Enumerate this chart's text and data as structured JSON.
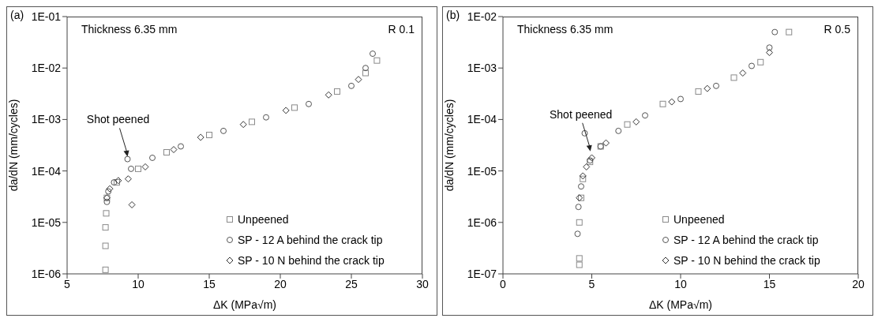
{
  "chart_data": [
    {
      "type": "scatter",
      "title": "(a)",
      "xlabel": "ΔK (MPa√m)",
      "ylabel": "da/dN (mm/cycles)",
      "log": "y",
      "grid": false,
      "legend": "bottom right",
      "xlim": [
        5,
        30
      ],
      "xticks": [
        5,
        10,
        15,
        20,
        25,
        30
      ],
      "ylim": [
        1e-06,
        0.1
      ],
      "yticks": [
        {
          "value": 1e-06,
          "label": "1E-06"
        },
        {
          "value": 1e-05,
          "label": "1E-05"
        },
        {
          "value": 0.0001,
          "label": "1E-04"
        },
        {
          "value": 0.001,
          "label": "1E-03"
        },
        {
          "value": 0.01,
          "label": "1E-02"
        },
        {
          "value": 0.1,
          "label": "1E-01"
        }
      ],
      "annotations": [
        "Thickness 6.35 mm",
        "R 0.1",
        {
          "text": "Shot peened",
          "x": 9.25,
          "y": 0.00019
        }
      ],
      "series": [
        {
          "name": "Unpeened",
          "color": "#8a8a8a",
          "marker": "square",
          "x": [
            7.7,
            7.7,
            7.7,
            7.75,
            7.8,
            8.5,
            10,
            12,
            15,
            18,
            21,
            24,
            26,
            26.8
          ],
          "values": [
            1.2e-06,
            3.5e-06,
            8e-06,
            1.5e-05,
            3e-05,
            6e-05,
            0.00011,
            0.00023,
            0.0005,
            0.0009,
            0.0017,
            0.0035,
            0.008,
            0.014
          ]
        },
        {
          "name": "SP - 12 A behind the crack tip",
          "color": "#555555",
          "marker": "circle",
          "x": [
            7.8,
            7.9,
            8.3,
            9.25,
            9.5,
            11,
            13,
            16,
            19,
            22,
            25,
            26,
            26.5
          ],
          "values": [
            2.5e-05,
            4e-05,
            6e-05,
            0.00017,
            0.00011,
            0.00018,
            0.0003,
            0.0006,
            0.0011,
            0.002,
            0.0045,
            0.01,
            0.019
          ]
        },
        {
          "name": "SP - 10 N behind the crack tip",
          "color": "#333333",
          "marker": "diamond",
          "x": [
            7.8,
            8,
            8.6,
            9.3,
            9.56,
            10.5,
            12.5,
            14.4,
            17.4,
            20.4,
            23.4,
            25.5
          ],
          "values": [
            3e-05,
            4.5e-05,
            6.5e-05,
            7e-05,
            2.2e-05,
            0.00012,
            0.00026,
            0.00045,
            0.0008,
            0.0015,
            0.003,
            0.006
          ]
        }
      ]
    },
    {
      "type": "scatter",
      "title": "(b)",
      "xlabel": "ΔK (MPa√m)",
      "ylabel": "da/dN (mm/cycles)",
      "log": "y",
      "grid": false,
      "legend": "bottom right",
      "xlim": [
        0,
        20
      ],
      "xticks": [
        0,
        5,
        10,
        15,
        20
      ],
      "ylim": [
        1e-07,
        0.01
      ],
      "yticks": [
        {
          "value": 1e-07,
          "label": "1E-07"
        },
        {
          "value": 1e-06,
          "label": "1E-06"
        },
        {
          "value": 1e-05,
          "label": "1E-05"
        },
        {
          "value": 0.0001,
          "label": "1E-04"
        },
        {
          "value": 0.001,
          "label": "1E-03"
        },
        {
          "value": 0.01,
          "label": "1E-02"
        }
      ],
      "annotations": [
        "Thickness 6.35 mm",
        "R 0.5",
        {
          "text": "Shot peened",
          "x": 4.92,
          "y": 2.4e-05
        }
      ],
      "series": [
        {
          "name": "Unpeened",
          "color": "#8a8a8a",
          "marker": "square",
          "x": [
            4.3,
            4.3,
            4.3,
            4.4,
            4.5,
            4.9,
            5.5,
            7,
            9,
            11,
            13,
            14.5,
            16.1
          ],
          "values": [
            1.5e-07,
            2e-07,
            1e-06,
            3e-06,
            7e-06,
            1.5e-05,
            3e-05,
            8e-05,
            0.0002,
            0.00035,
            0.00065,
            0.0013,
            0.005
          ]
        },
        {
          "name": "SP - 12 A behind the crack tip",
          "color": "#555555",
          "marker": "circle",
          "x": [
            4.2,
            4.25,
            4.4,
            4.6,
            4.9,
            5.5,
            6.5,
            8,
            10,
            12,
            14,
            15,
            15.3
          ],
          "values": [
            6e-07,
            2e-06,
            5e-06,
            5.4e-05,
            1.6e-05,
            3e-05,
            6e-05,
            0.00012,
            0.00025,
            0.00045,
            0.0011,
            0.0025,
            0.005
          ]
        },
        {
          "name": "SP - 10 N behind the crack tip",
          "color": "#333333",
          "marker": "diamond",
          "x": [
            4.3,
            4.5,
            4.7,
            5,
            5.8,
            7.5,
            9.5,
            11.5,
            13.5,
            15
          ],
          "values": [
            3e-06,
            8e-06,
            1.2e-05,
            1.8e-05,
            3.5e-05,
            9e-05,
            0.00022,
            0.0004,
            0.0008,
            0.002
          ]
        }
      ]
    }
  ]
}
